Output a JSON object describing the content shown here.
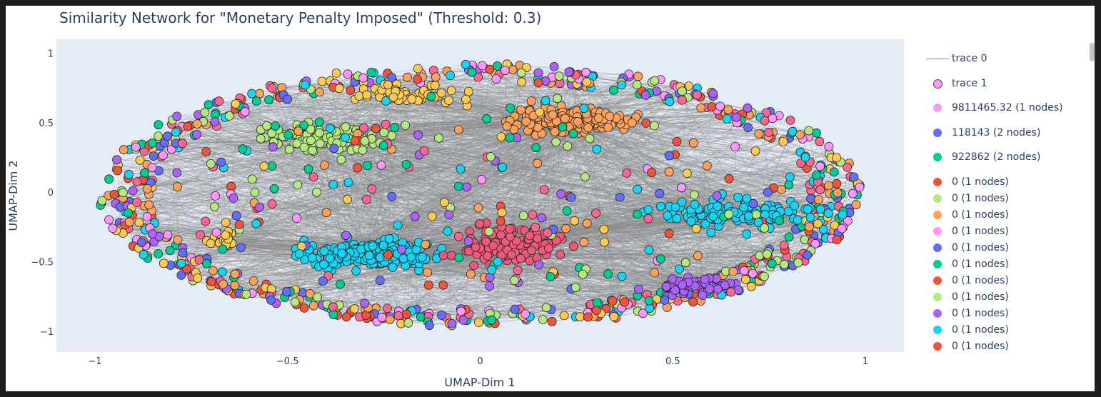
{
  "chart_data": {
    "type": "scatter",
    "title": "Similarity Network for \"Monetary Penalty Imposed\" (Threshold: 0.3)",
    "xlabel": "UMAP-Dim 1",
    "ylabel": "UMAP-Dim 2",
    "xlim": [
      -1.1,
      1.1
    ],
    "ylim": [
      -1.15,
      1.1
    ],
    "x_ticks": [
      -1,
      -0.5,
      0,
      0.5,
      1
    ],
    "x_tick_labels": [
      "−1",
      "−0.5",
      "0",
      "0.5",
      "1"
    ],
    "y_ticks": [
      -1,
      -0.5,
      0,
      0.5,
      1
    ],
    "y_tick_labels": [
      "−1",
      "−0.5",
      "0",
      "0.5",
      "1"
    ],
    "grid": false,
    "legend_placement": "right",
    "plot_background": "#e5ecf6",
    "edge_color": "#888888",
    "marker_outline": "#222222",
    "palette": [
      "#ef553b",
      "#636efa",
      "#00cc96",
      "#ab63fa",
      "#ffa15a",
      "#19d3f3",
      "#ff6692",
      "#b6e880",
      "#ff97ff",
      "#fecb52"
    ],
    "ring": {
      "center": [
        0.0,
        -0.02
      ],
      "radius_x": 0.97,
      "radius_y": 0.93
    },
    "clusters": [
      {
        "center": [
          0.23,
          0.52
        ],
        "spread": [
          0.11,
          0.07
        ],
        "count": 210,
        "color": "#ffa15a"
      },
      {
        "center": [
          -0.29,
          -0.45
        ],
        "spread": [
          0.14,
          0.07
        ],
        "count": 230,
        "color": "#19d3f3"
      },
      {
        "center": [
          0.08,
          -0.38
        ],
        "spread": [
          0.1,
          0.11
        ],
        "count": 130,
        "color": "#ef5a7a"
      },
      {
        "center": [
          0.66,
          -0.15
        ],
        "spread": [
          0.16,
          0.08
        ],
        "count": 130,
        "color": "#19d3f3"
      },
      {
        "center": [
          -0.42,
          0.4
        ],
        "spread": [
          0.12,
          0.08
        ],
        "count": 95,
        "color": "#b6e880"
      },
      {
        "center": [
          -0.2,
          0.7
        ],
        "spread": [
          0.15,
          0.06
        ],
        "count": 60,
        "color": "#fecb52"
      },
      {
        "center": [
          0.55,
          -0.68
        ],
        "spread": [
          0.09,
          0.05
        ],
        "count": 45,
        "color": "#ab63fa"
      },
      {
        "center": [
          -0.66,
          -0.34
        ],
        "spread": [
          0.04,
          0.05
        ],
        "count": 25,
        "color": "#fecb52"
      }
    ],
    "legend": [
      {
        "label": "trace 0",
        "type": "line",
        "color": "#888888"
      },
      {
        "label": "trace 1",
        "type": "marker",
        "color": "#ff97ff"
      },
      {
        "label": "9811465.32 (1 nodes)",
        "type": "marker",
        "color": "#ff97ff"
      },
      {
        "label": "118143 (2 nodes)",
        "type": "marker",
        "color": "#636efa"
      },
      {
        "label": "922862 (2 nodes)",
        "type": "marker",
        "color": "#00cc96"
      },
      {
        "label": "0 (1 nodes)",
        "type": "marker",
        "color": "#ef553b"
      },
      {
        "label": "0 (1 nodes)",
        "type": "marker",
        "color": "#b6e880"
      },
      {
        "label": "0 (1 nodes)",
        "type": "marker",
        "color": "#ffa15a"
      },
      {
        "label": "0 (1 nodes)",
        "type": "marker",
        "color": "#ff97ff"
      },
      {
        "label": "0 (1 nodes)",
        "type": "marker",
        "color": "#636efa"
      },
      {
        "label": "0 (1 nodes)",
        "type": "marker",
        "color": "#00cc96"
      },
      {
        "label": "0 (1 nodes)",
        "type": "marker",
        "color": "#ef553b"
      },
      {
        "label": "0 (1 nodes)",
        "type": "marker",
        "color": "#b6e880"
      },
      {
        "label": "0 (1 nodes)",
        "type": "marker",
        "color": "#ab63fa"
      },
      {
        "label": "0 (1 nodes)",
        "type": "marker",
        "color": "#19d3f3"
      },
      {
        "label": "0 (1 nodes)",
        "type": "marker",
        "color": "#ef553b"
      },
      {
        "label": "0 (1 nodes)",
        "type": "marker",
        "color": "#ffa15a"
      }
    ]
  }
}
